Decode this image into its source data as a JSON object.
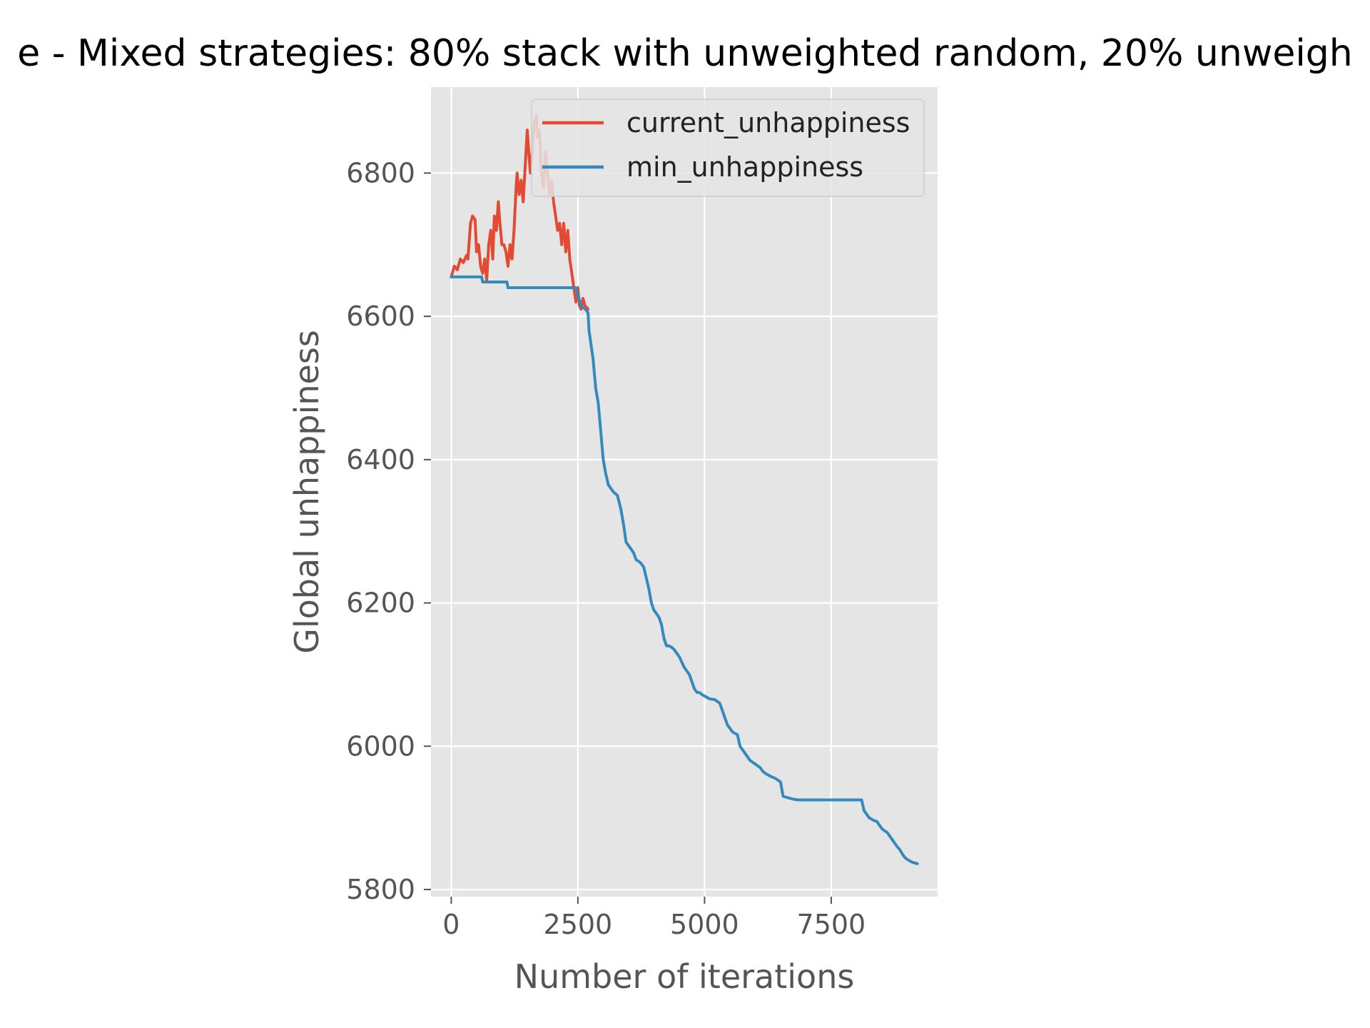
{
  "chart_data": {
    "type": "line",
    "title": "e - Mixed strategies: 80% stack with unweighted random, 20% unweigh",
    "xlabel": "Number of iterations",
    "ylabel": "Global unhappiness",
    "xlim": [
      -400,
      9600
    ],
    "ylim": [
      5790,
      6920
    ],
    "x_ticks": [
      0,
      2500,
      5000,
      7500
    ],
    "x_tick_labels": [
      "0",
      "2500",
      "5000",
      "7500"
    ],
    "y_ticks": [
      5800,
      6000,
      6200,
      6400,
      6600,
      6800
    ],
    "y_tick_labels": [
      "5800",
      "6000",
      "6200",
      "6400",
      "6600",
      "6800"
    ],
    "grid": true,
    "legend_position": "top-right",
    "colors": {
      "background": "#e5e5e5",
      "grid": "#ffffff",
      "current": "#e24a33",
      "min": "#348abd"
    },
    "series": [
      {
        "name": "current_unhappiness",
        "color": "#e24a33",
        "x": [
          0,
          60,
          120,
          180,
          240,
          300,
          330,
          380,
          420,
          470,
          500,
          540,
          580,
          620,
          660,
          700,
          740,
          780,
          820,
          850,
          890,
          930,
          960,
          1000,
          1040,
          1080,
          1120,
          1160,
          1200,
          1240,
          1280,
          1300,
          1340,
          1380,
          1420,
          1460,
          1500,
          1520,
          1560,
          1600,
          1640,
          1680,
          1700,
          1740,
          1780,
          1820,
          1860,
          1900,
          1940,
          1980,
          2020,
          2060,
          2100,
          2140,
          2180,
          2220,
          2260,
          2300,
          2340,
          2380,
          2420,
          2460,
          2500,
          2530,
          2560,
          2600,
          2640,
          2680,
          2700
        ],
        "y": [
          6655,
          6670,
          6665,
          6680,
          6675,
          6685,
          6680,
          6730,
          6740,
          6735,
          6690,
          6700,
          6670,
          6660,
          6680,
          6650,
          6700,
          6720,
          6680,
          6740,
          6720,
          6760,
          6730,
          6700,
          6700,
          6690,
          6670,
          6700,
          6680,
          6720,
          6780,
          6800,
          6770,
          6790,
          6760,
          6810,
          6860,
          6840,
          6800,
          6830,
          6870,
          6880,
          6850,
          6860,
          6800,
          6780,
          6830,
          6800,
          6770,
          6790,
          6760,
          6740,
          6720,
          6730,
          6700,
          6730,
          6690,
          6720,
          6680,
          6660,
          6640,
          6620,
          6640,
          6615,
          6610,
          6625,
          6615,
          6612,
          6610
        ]
      },
      {
        "name": "min_unhappiness",
        "color": "#348abd",
        "x": [
          0,
          600,
          620,
          1100,
          1120,
          2450,
          2480,
          2520,
          2560,
          2600,
          2650,
          2700,
          2720,
          2760,
          2800,
          2850,
          2900,
          2950,
          3000,
          3050,
          3100,
          3150,
          3200,
          3280,
          3350,
          3400,
          3450,
          3500,
          3550,
          3600,
          3650,
          3700,
          3750,
          3800,
          3900,
          3950,
          4000,
          4050,
          4100,
          4150,
          4200,
          4250,
          4300,
          4350,
          4400,
          4450,
          4500,
          4600,
          4700,
          4750,
          4800,
          4850,
          4900,
          4950,
          5000,
          5050,
          5100,
          5200,
          5300,
          5350,
          5450,
          5550,
          5600,
          5650,
          5700,
          5750,
          5800,
          5900,
          6000,
          6100,
          6150,
          6200,
          6250,
          6300,
          6400,
          6500,
          6550,
          6650,
          6750,
          6850,
          6900,
          6950,
          7000,
          7050,
          7100,
          7200,
          7300,
          7400,
          7500,
          7600,
          7700,
          7800,
          7900,
          8000,
          8100,
          8150,
          8200,
          8250,
          8300,
          8350,
          8400,
          8450,
          8500,
          8550,
          8600,
          8650,
          8700,
          8750,
          8800,
          8850,
          8900,
          8950,
          9000,
          9050,
          9100,
          9150,
          9200
        ],
        "y": [
          6655,
          6655,
          6648,
          6648,
          6640,
          6640,
          6635,
          6625,
          6615,
          6612,
          6610,
          6605,
          6580,
          6560,
          6540,
          6500,
          6480,
          6440,
          6400,
          6380,
          6365,
          6360,
          6355,
          6350,
          6330,
          6310,
          6285,
          6280,
          6275,
          6270,
          6260,
          6258,
          6255,
          6250,
          6220,
          6200,
          6190,
          6185,
          6180,
          6170,
          6150,
          6140,
          6140,
          6138,
          6135,
          6130,
          6125,
          6110,
          6100,
          6090,
          6080,
          6075,
          6075,
          6072,
          6070,
          6068,
          6066,
          6065,
          6060,
          6050,
          6030,
          6020,
          6018,
          6016,
          6000,
          5995,
          5990,
          5980,
          5975,
          5970,
          5965,
          5962,
          5960,
          5958,
          5955,
          5950,
          5930,
          5928,
          5926,
          5925,
          5925,
          5925,
          5925,
          5925,
          5925,
          5925,
          5925,
          5925,
          5925,
          5925,
          5925,
          5925,
          5925,
          5925,
          5925,
          5910,
          5905,
          5900,
          5898,
          5896,
          5895,
          5890,
          5885,
          5882,
          5880,
          5875,
          5870,
          5865,
          5860,
          5856,
          5850,
          5845,
          5842,
          5840,
          5838,
          5837,
          5836
        ]
      }
    ]
  }
}
